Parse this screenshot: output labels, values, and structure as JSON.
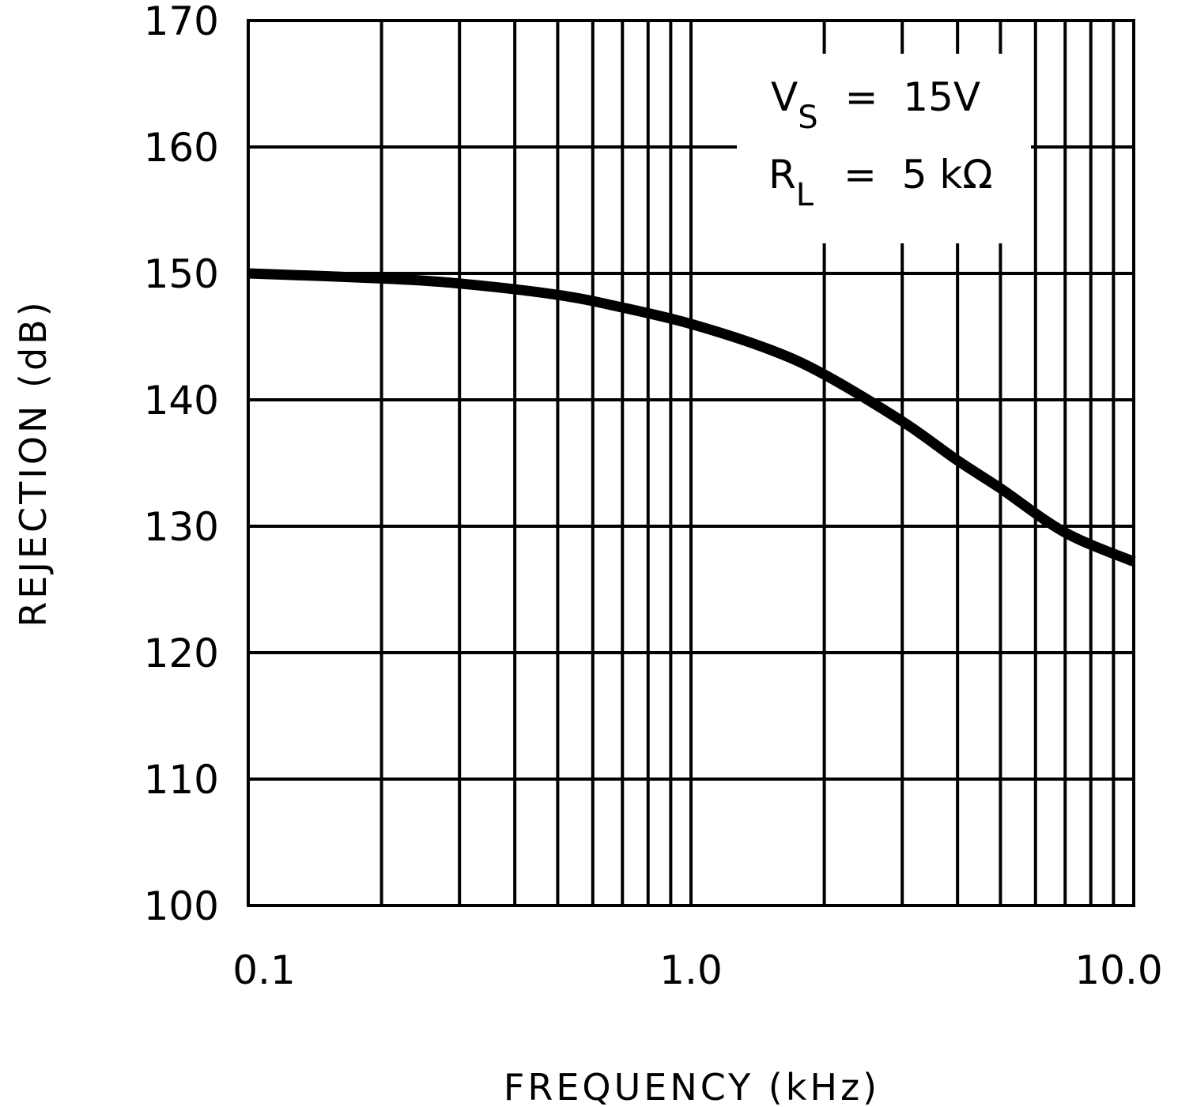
{
  "chart_data": {
    "type": "line",
    "title": "",
    "xlabel": "FREQUENCY (kHz)",
    "ylabel": "REJECTION (dB)",
    "xscale": "log",
    "xlim": [
      0.1,
      10.0
    ],
    "ylim": [
      100,
      170
    ],
    "x_tick_labels": [
      "0.1",
      "1.0",
      "10.0"
    ],
    "y_tick_labels": [
      "100",
      "110",
      "120",
      "130",
      "140",
      "150",
      "160",
      "170"
    ],
    "grid": true,
    "legend": null,
    "annotations": [
      {
        "text": "V_S = 15V",
        "main": "V",
        "sub": "S",
        "rest": "=  15V"
      },
      {
        "text": "R_L = 5 kΩ",
        "main": "R",
        "sub": "L",
        "rest": "=  5 kΩ"
      }
    ],
    "series": [
      {
        "name": "Rejection",
        "x": [
          0.1,
          0.2,
          0.3,
          0.5,
          0.7,
          1.0,
          1.5,
          2.0,
          3.0,
          4.0,
          5.0,
          7.0,
          10.0
        ],
        "y": [
          150.0,
          149.6,
          149.2,
          148.3,
          147.3,
          146.0,
          144.0,
          142.0,
          138.3,
          135.2,
          133.0,
          129.5,
          127.2
        ]
      }
    ]
  },
  "labels": {
    "xlabel": "FREQUENCY (kHz)",
    "ylabel": "REJECTION (dB)",
    "ann1_main": "V",
    "ann1_sub": "S",
    "ann1_rest": "=  15V",
    "ann2_main": "R",
    "ann2_sub": "L",
    "ann2_rest": "=  5 kΩ"
  }
}
